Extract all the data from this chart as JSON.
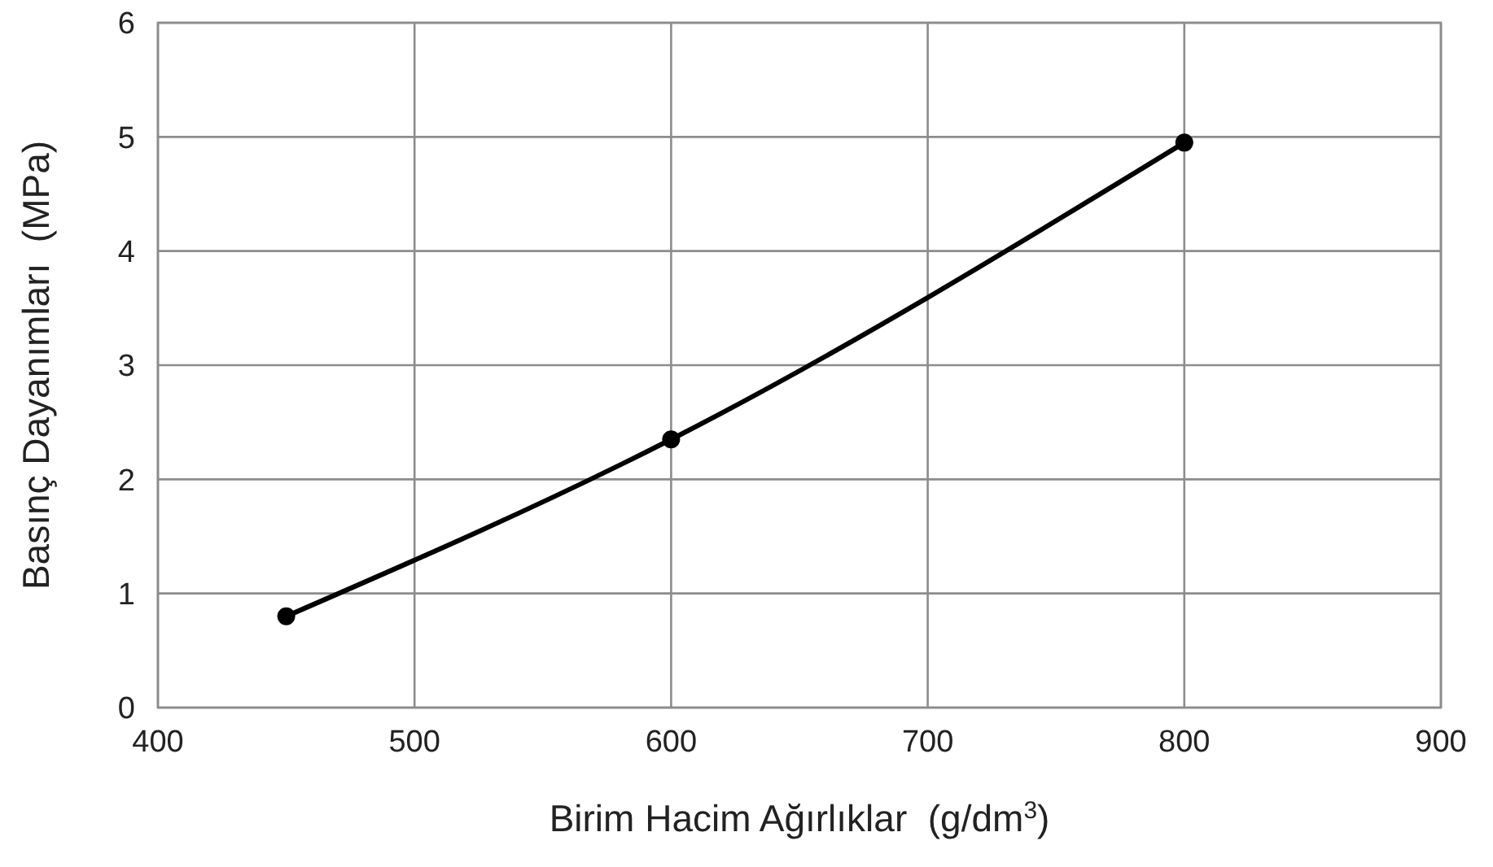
{
  "chart_data": {
    "type": "line",
    "xlabel": "Birim Hacim Ağırlıklar  (g/dm$^{3}$)",
    "ylabel": "Basınç Dayanımları  (MPa)",
    "x": [
      450,
      600,
      800
    ],
    "series": [
      {
        "color": "#000000",
        "values": [
          0.8,
          2.35,
          4.95
        ]
      }
    ],
    "xlim": [
      400,
      900
    ],
    "xticks": [
      400,
      500,
      600,
      700,
      800,
      900
    ],
    "ylim": [
      0,
      6
    ],
    "yticks": [
      0,
      1,
      2,
      3,
      4,
      5,
      6
    ],
    "grid": true,
    "marker": "circle",
    "line_style": "solid"
  }
}
